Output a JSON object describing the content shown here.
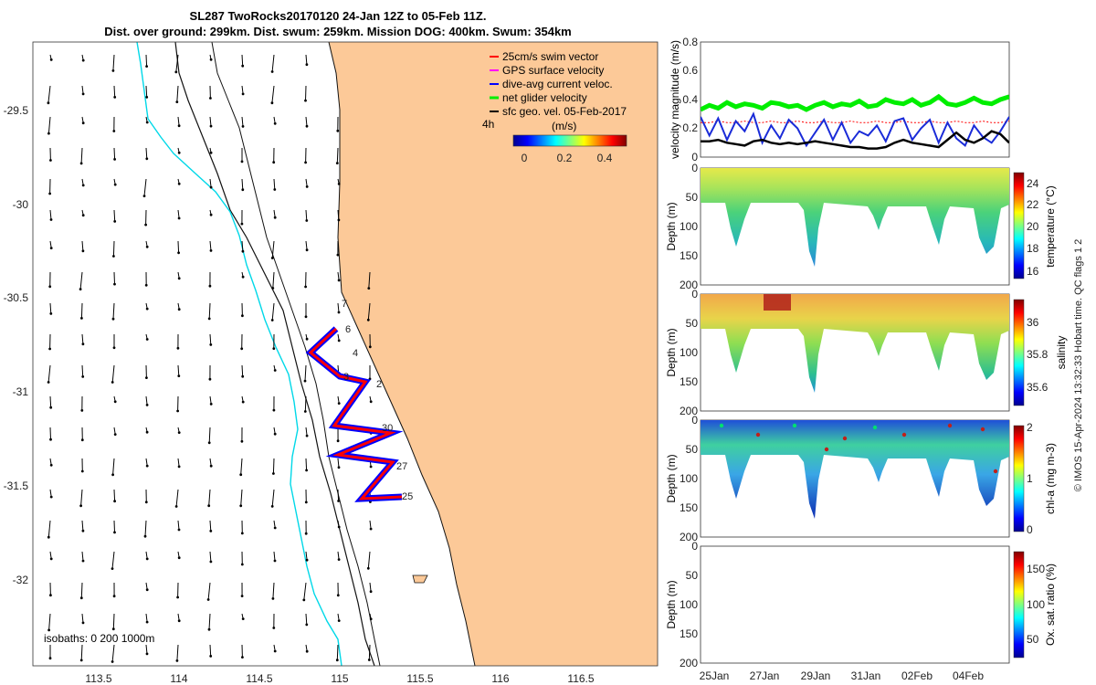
{
  "title_line1": "SL287 TwoRocks20170120 24-Jan 12Z to 05-Feb 11Z.",
  "title_line2": "Dist. over ground: 299km. Dist. swum: 259km. Mission DOG: 400km. Swum: 354km",
  "side_note": "© IMOS 15-Apr-2024 13:32:33 Hobart time. QC flags 1  2",
  "colors": {
    "land": "#fcc998",
    "isobath_200": "#00d8e8",
    "coast": "#111111",
    "gps": "#ff00ff",
    "swim": "#ff0000",
    "current": "#0000ff",
    "glider": "#00ee00",
    "geo": "#000000"
  },
  "map": {
    "xticks": [
      "113.5",
      "114",
      "114.5",
      "115",
      "115.5",
      "116",
      "116.5"
    ],
    "yticks": [
      "-29.5",
      "-30",
      "-30.5",
      "-31",
      "-31.5",
      "-32"
    ],
    "legend": [
      "25cm/s swim vector",
      "GPS surface velocity",
      "dive-avg current veloc.",
      "net glider velocity",
      "sfc geo. vel. 05-Feb-2017"
    ],
    "time_label": "4h",
    "colorbar_unit": "(m/s)",
    "colorbar_ticks": [
      "0",
      "0.2",
      "0.4"
    ],
    "isobaths": "isobaths: 0   200   1000m",
    "track_labels": [
      "7",
      "6",
      "4",
      "3",
      "2",
      "30",
      "27",
      "25"
    ]
  },
  "chart_data": [
    {
      "type": "line",
      "ylabel": "velocity magnitude (m/s)",
      "ylim": [
        0,
        0.8
      ],
      "yticks": [
        "0",
        "0.2",
        "0.4",
        "0.6",
        "0.8"
      ],
      "series": [
        {
          "values": [
            0.33,
            0.36,
            0.34,
            0.38,
            0.35,
            0.37,
            0.36,
            0.34,
            0.38,
            0.37,
            0.35,
            0.36,
            0.33,
            0.36,
            0.38,
            0.35,
            0.37,
            0.36,
            0.39,
            0.35,
            0.36,
            0.4,
            0.38,
            0.37,
            0.4,
            0.36,
            0.38,
            0.42,
            0.37,
            0.36,
            0.38,
            0.41,
            0.38,
            0.37,
            0.4,
            0.42
          ]
        },
        {
          "values": [
            0.28,
            0.15,
            0.27,
            0.12,
            0.25,
            0.18,
            0.3,
            0.1,
            0.22,
            0.13,
            0.26,
            0.2,
            0.08,
            0.17,
            0.26,
            0.12,
            0.24,
            0.1,
            0.18,
            0.15,
            0.22,
            0.11,
            0.25,
            0.27,
            0.12,
            0.2,
            0.26,
            0.1,
            0.24,
            0.13,
            0.08,
            0.22,
            0.14,
            0.1,
            0.18,
            0.28
          ]
        },
        {
          "values": [
            0.11,
            0.11,
            0.12,
            0.1,
            0.09,
            0.08,
            0.11,
            0.12,
            0.1,
            0.09,
            0.1,
            0.09,
            0.1,
            0.11,
            0.1,
            0.09,
            0.08,
            0.07,
            0.07,
            0.06,
            0.06,
            0.07,
            0.1,
            0.12,
            0.1,
            0.09,
            0.08,
            0.07,
            0.12,
            0.17,
            0.12,
            0.1,
            0.13,
            0.18,
            0.16,
            0.1
          ]
        },
        {
          "values": [
            0.24,
            0.24,
            0.25,
            0.24,
            0.24,
            0.25,
            0.24,
            0.24,
            0.25,
            0.24,
            0.24,
            0.25,
            0.24,
            0.24,
            0.25,
            0.24,
            0.24,
            0.25,
            0.24,
            0.24,
            0.25,
            0.24,
            0.24,
            0.25,
            0.24,
            0.24,
            0.25,
            0.24,
            0.24,
            0.25,
            0.24,
            0.24,
            0.25,
            0.24,
            0.24,
            0.25
          ]
        }
      ]
    },
    {
      "type": "heatmap",
      "ylabel": "Depth (m)",
      "clabel": "temperature (°C)",
      "cticks": [
        "16",
        "18",
        "20",
        "22",
        "24"
      ],
      "yticks": [
        "0",
        "50",
        "100",
        "150",
        "200"
      ]
    },
    {
      "type": "heatmap",
      "ylabel": "Depth (m)",
      "clabel": "salinity",
      "cticks": [
        "35.6",
        "35.8",
        "36"
      ],
      "yticks": [
        "0",
        "50",
        "100",
        "150",
        "200"
      ]
    },
    {
      "type": "heatmap",
      "ylabel": "Depth (m)",
      "clabel": "chl-a (mg m-3)",
      "cticks": [
        "0",
        "1",
        "2"
      ],
      "yticks": [
        "0",
        "50",
        "100",
        "150",
        "200"
      ]
    },
    {
      "type": "heatmap",
      "ylabel": "Depth (m)",
      "clabel": "Ox. sat. ratio (%)",
      "cticks": [
        "50",
        "100",
        "150"
      ],
      "yticks": [
        "0",
        "50",
        "100",
        "150",
        "200"
      ],
      "xticks": [
        "25Jan",
        "27Jan",
        "29Jan",
        "31Jan",
        "02Feb",
        "04Feb"
      ]
    }
  ]
}
